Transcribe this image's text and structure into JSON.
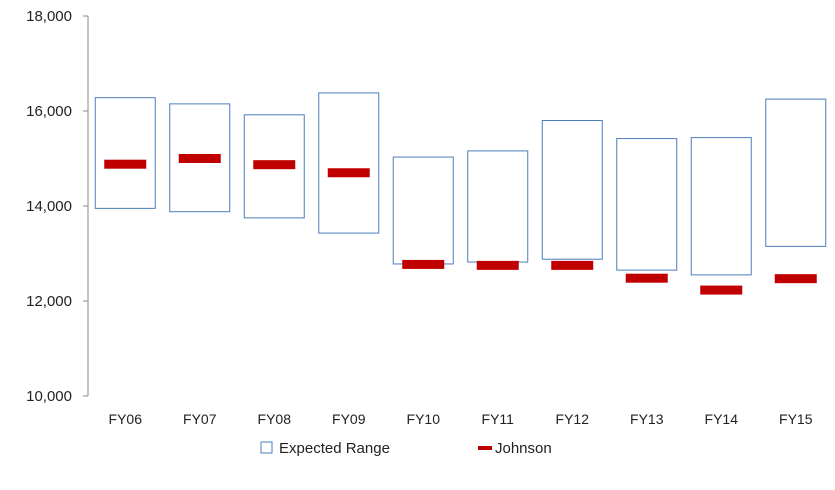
{
  "chart_data": {
    "type": "bar",
    "categories": [
      "FY06",
      "FY07",
      "FY08",
      "FY09",
      "FY10",
      "FY11",
      "FY12",
      "FY13",
      "FY14",
      "FY15"
    ],
    "series": [
      {
        "name": "Expected Range",
        "kind": "range-box",
        "low": [
          13950,
          13880,
          13750,
          13430,
          12780,
          12820,
          12880,
          12650,
          12550,
          13150
        ],
        "high": [
          16280,
          16150,
          15920,
          16380,
          15030,
          15160,
          15800,
          15420,
          15440,
          16250
        ],
        "color": "#4a7ebb"
      },
      {
        "name": "Johnson",
        "kind": "marker",
        "values": [
          14880,
          15000,
          14870,
          14700,
          12770,
          12750,
          12750,
          12480,
          12230,
          12470
        ],
        "color": "#c00000"
      }
    ],
    "y_ticks": [
      "10,000",
      "12,000",
      "14,000",
      "16,000",
      "18,000"
    ],
    "ylim": [
      10000,
      18000
    ],
    "grid": false,
    "legend": "bottom-center"
  }
}
